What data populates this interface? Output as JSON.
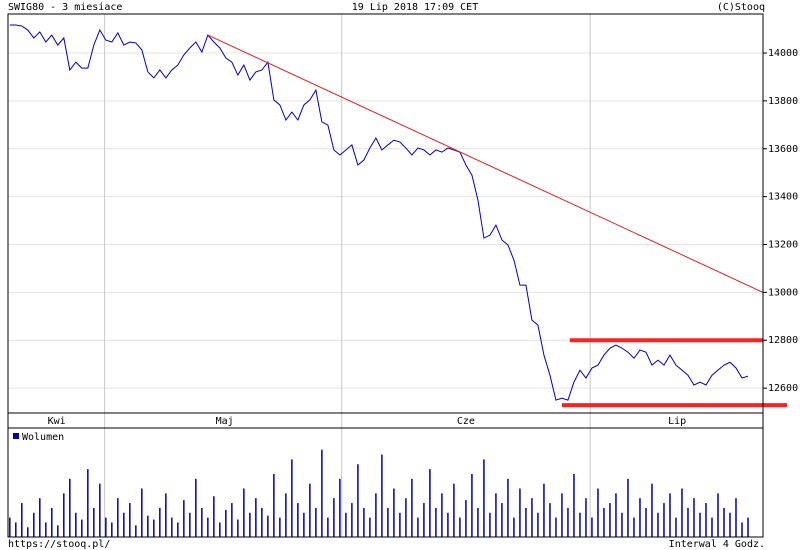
{
  "header": {
    "title": "SWIG80 - 3 miesiace",
    "date": "19 Lip 2018 17:09 CET",
    "copyright": "(C)Stooq"
  },
  "chart_data": [
    {
      "type": "line",
      "color": "#0000c0",
      "grid": true,
      "x": [
        0,
        1,
        2,
        3,
        4,
        5,
        6,
        7,
        8,
        9,
        10,
        11,
        12,
        13,
        14,
        15,
        16,
        17,
        18,
        19,
        20,
        21,
        22,
        23,
        24,
        25,
        26,
        27,
        28,
        29,
        30,
        31,
        32,
        33,
        34,
        35,
        36,
        37,
        38,
        39,
        40,
        41,
        42,
        43,
        44,
        45,
        46,
        47,
        48,
        49,
        50,
        51,
        52,
        53,
        54,
        55,
        56,
        57,
        58,
        59,
        60,
        61,
        62,
        63,
        64,
        65,
        66,
        67,
        68,
        69,
        70,
        71,
        72,
        73,
        74,
        75,
        76,
        77,
        78,
        79,
        80,
        81,
        82,
        83,
        84,
        85,
        86,
        87,
        88,
        89,
        90,
        91,
        92,
        93,
        94,
        95,
        96,
        97,
        98,
        99,
        100,
        101,
        102,
        103,
        104,
        105,
        106,
        107,
        108,
        109,
        110,
        111,
        112,
        113,
        114,
        115,
        116,
        117,
        118,
        119,
        120,
        121,
        122,
        123
      ],
      "values": [
        14117,
        14117,
        14113,
        14096,
        14063,
        14088,
        14046,
        14075,
        14033,
        14063,
        13929,
        13962,
        13937,
        13937,
        14033,
        14096,
        14054,
        14046,
        14084,
        14033,
        14046,
        14042,
        14013,
        13921,
        13896,
        13929,
        13896,
        13929,
        13950,
        13992,
        14021,
        14046,
        14004,
        14075,
        14046,
        14021,
        13979,
        13962,
        13908,
        13950,
        13887,
        13921,
        13929,
        13962,
        13804,
        13783,
        13720,
        13753,
        13720,
        13783,
        13804,
        13845,
        13712,
        13699,
        13595,
        13574,
        13595,
        13616,
        13532,
        13553,
        13603,
        13645,
        13595,
        13616,
        13636,
        13628,
        13603,
        13574,
        13603,
        13595,
        13574,
        13595,
        13586,
        13603,
        13595,
        13586,
        13532,
        13490,
        13386,
        13227,
        13239,
        13281,
        13219,
        13198,
        13135,
        13030,
        13030,
        12884,
        12863,
        12738,
        12654,
        12550,
        12558,
        12550,
        12625,
        12675,
        12642,
        12684,
        12696,
        12738,
        12767,
        12780,
        12767,
        12750,
        12725,
        12759,
        12750,
        12696,
        12717,
        12696,
        12738,
        12696,
        12675,
        12654,
        12613,
        12625,
        12613,
        12654,
        12675,
        12696,
        12708,
        12684,
        12642,
        12650
      ],
      "xlim": [
        -0.3,
        125.5
      ],
      "ylim": [
        12496,
        14163
      ],
      "yticks": [
        12600,
        12800,
        13000,
        13200,
        13400,
        13600,
        13800,
        14000
      ],
      "xticks": [
        {
          "value": 7.8,
          "label": "Kwi"
        },
        {
          "value": 35.8,
          "label": "Maj"
        },
        {
          "value": 76,
          "label": "Cze"
        },
        {
          "value": 111.2,
          "label": "Lip"
        }
      ],
      "month_boundaries": [
        15.8,
        55.3,
        96.7
      ],
      "lines": [
        {
          "color": "#e02020",
          "width": 1,
          "x": [
            33,
            125.5
          ],
          "y": [
            14075,
            13000
          ]
        },
        {
          "color": "#ff2020",
          "width": 4,
          "x": [
            93.3,
            125.5
          ],
          "y": [
            12800,
            12800
          ]
        },
        {
          "color": "#ff2020",
          "width": 4,
          "x": [
            92,
            129.5
          ],
          "y": [
            12529,
            12529
          ]
        }
      ]
    },
    {
      "type": "bar",
      "xlim": [
        -0.3,
        125.5
      ],
      "ylim": [
        0,
        100
      ],
      "series": [
        {
          "name": "Wolumen",
          "color": "#0000aa",
          "values": [
            20,
            15,
            35,
            10,
            25,
            40,
            15,
            30,
            12,
            45,
            60,
            25,
            18,
            70,
            30,
            55,
            20,
            15,
            40,
            25,
            35,
            12,
            50,
            22,
            18,
            30,
            45,
            20,
            15,
            38,
            25,
            60,
            30,
            20,
            42,
            15,
            28,
            35,
            18,
            50,
            25,
            40,
            30,
            22,
            65,
            20,
            45,
            80,
            35,
            25,
            55,
            30,
            90,
            20,
            40,
            60,
            25,
            35,
            75,
            30,
            20,
            45,
            85,
            30,
            50,
            25,
            40,
            60,
            20,
            35,
            70,
            30,
            45,
            25,
            55,
            20,
            38,
            65,
            30,
            80,
            25,
            45,
            35,
            60,
            20,
            50,
            30,
            40,
            25,
            55,
            35,
            20,
            45,
            30,
            65,
            25,
            40,
            20,
            50,
            30,
            35,
            45,
            25,
            60,
            20,
            40,
            30,
            55,
            25,
            35,
            45,
            20,
            50,
            30,
            40,
            25,
            35,
            20,
            45,
            30,
            25,
            40,
            15,
            20
          ]
        }
      ]
    }
  ],
  "footer": {
    "url": "https://stooq.pl/",
    "interval": "Interwal 4 Godz."
  }
}
